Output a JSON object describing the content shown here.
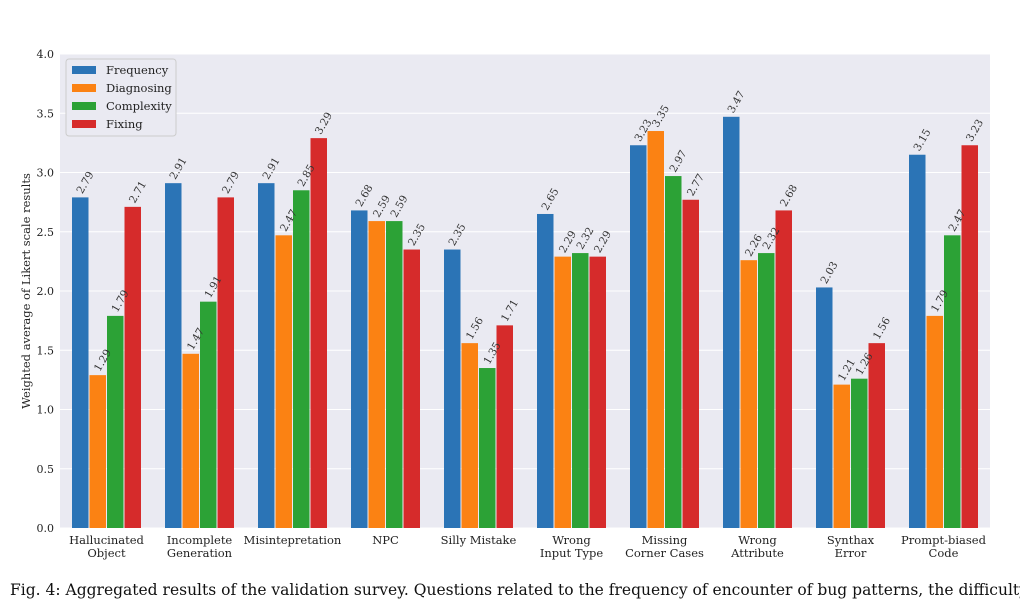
{
  "chart_data": {
    "type": "bar",
    "title": "",
    "xlabel": "",
    "ylabel": "Weighted average of Likert scale results",
    "ylim": [
      0,
      4
    ],
    "yticks": [
      "0.0",
      "0.5",
      "1.0",
      "1.5",
      "2.0",
      "2.5",
      "3.0",
      "3.5",
      "4.0"
    ],
    "grid": true,
    "legend_position": "top-left",
    "categories": [
      [
        "Hallucinated",
        "Object"
      ],
      [
        "Incomplete",
        "Generation"
      ],
      [
        "Misintepretation"
      ],
      [
        "NPC"
      ],
      [
        "Silly Mistake"
      ],
      [
        "Wrong",
        "Input Type"
      ],
      [
        "Missing",
        "Corner Cases"
      ],
      [
        "Wrong",
        "Attribute"
      ],
      [
        "Synthax",
        "Error"
      ],
      [
        "Prompt-biased",
        "Code"
      ]
    ],
    "series": [
      {
        "name": "Frequency",
        "color": "#2b74b6",
        "values": [
          2.79,
          2.91,
          2.91,
          2.68,
          2.35,
          2.65,
          3.23,
          3.47,
          2.03,
          3.15
        ]
      },
      {
        "name": "Diagnosing",
        "color": "#fb8213",
        "values": [
          1.29,
          1.47,
          2.47,
          2.59,
          1.56,
          2.29,
          3.35,
          2.26,
          1.21,
          1.79
        ]
      },
      {
        "name": "Complexity",
        "color": "#2ca236",
        "values": [
          1.79,
          1.91,
          2.85,
          2.59,
          1.35,
          2.32,
          2.97,
          2.32,
          1.26,
          2.47
        ]
      },
      {
        "name": "Fixing",
        "color": "#d62b2b",
        "values": [
          2.71,
          2.79,
          3.29,
          2.35,
          1.71,
          2.29,
          2.77,
          2.68,
          1.56,
          3.23
        ]
      }
    ]
  },
  "caption": "Fig. 4: Aggregated results of the validation survey. Questions related to the frequency of encounter of bug patterns, the difficulty"
}
